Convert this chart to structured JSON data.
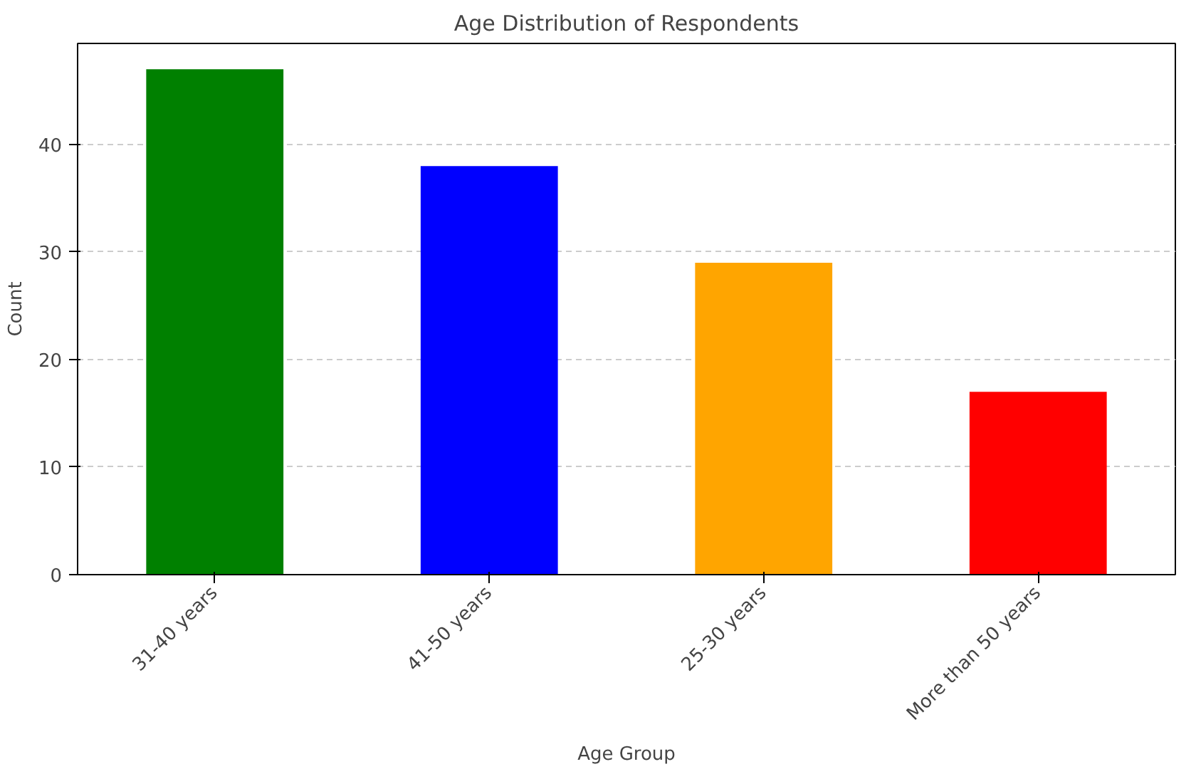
{
  "chart_data": {
    "type": "bar",
    "title": "Age Distribution of Respondents",
    "xlabel": "Age Group",
    "ylabel": "Count",
    "categories": [
      "31-40 years",
      "41-50 years",
      "25-30 years",
      "More than 50 years"
    ],
    "values": [
      47,
      38,
      29,
      17
    ],
    "colors": [
      "#008000",
      "#0000ff",
      "#ffa500",
      "#ff0000"
    ],
    "ylim": [
      0,
      49.4
    ],
    "yticks": [
      0,
      10,
      20,
      30,
      40
    ],
    "grid": "y"
  }
}
